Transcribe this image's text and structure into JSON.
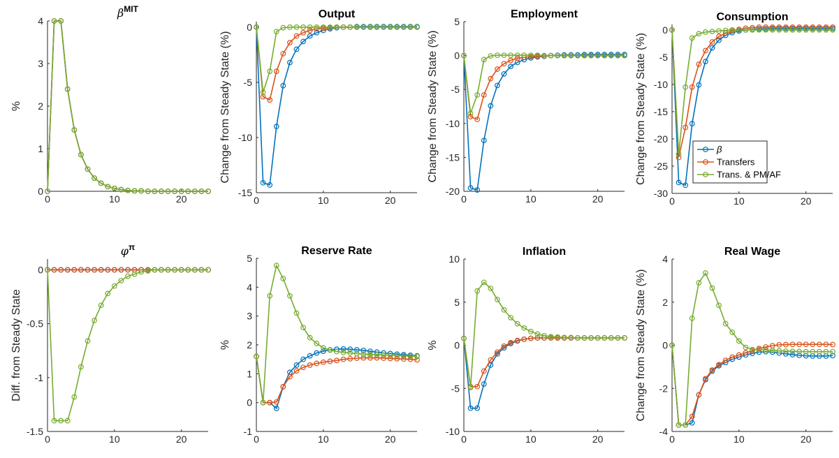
{
  "figure": {
    "legend": [
      "β",
      "Transfers",
      "Trans. & PM/AF"
    ],
    "series_colors": [
      "#0072BD",
      "#D95319",
      "#77AC30"
    ]
  },
  "chart_data": [
    {
      "type": "line",
      "title_main": "β",
      "title_sup": "MIT",
      "ylabel": "%",
      "xlim": [
        0,
        24
      ],
      "ylim": [
        0,
        4
      ],
      "xticks": [
        "0",
        "10",
        "20"
      ],
      "yticks": [
        "0",
        "1",
        "2",
        "3",
        "4"
      ],
      "x": [
        0,
        1,
        2,
        3,
        4,
        5,
        6,
        7,
        8,
        9,
        10,
        11,
        12,
        13,
        14,
        15,
        16,
        17,
        18,
        19,
        20,
        21,
        22,
        23,
        24
      ],
      "series": [
        {
          "values": [
            0,
            4,
            4,
            2.4,
            1.44,
            0.86,
            0.52,
            0.31,
            0.19,
            0.11,
            0.07,
            0.04,
            0.02,
            0.01,
            0.01,
            0,
            0,
            0,
            0,
            0,
            0,
            0,
            0,
            0,
            0
          ]
        },
        {
          "values": [
            0,
            4,
            4,
            2.4,
            1.44,
            0.86,
            0.52,
            0.31,
            0.19,
            0.11,
            0.07,
            0.04,
            0.02,
            0.01,
            0.01,
            0,
            0,
            0,
            0,
            0,
            0,
            0,
            0,
            0,
            0
          ]
        },
        {
          "values": [
            0,
            4,
            4,
            2.4,
            1.44,
            0.86,
            0.52,
            0.31,
            0.19,
            0.11,
            0.07,
            0.04,
            0.02,
            0.01,
            0.01,
            0,
            0,
            0,
            0,
            0,
            0,
            0,
            0,
            0,
            0
          ]
        }
      ]
    },
    {
      "type": "line",
      "title_main": "Output",
      "ylabel": "Change from Steady State (%)",
      "xlim": [
        0,
        24
      ],
      "ylim": [
        -15,
        0.5
      ],
      "xticks": [
        "0",
        "10",
        "20"
      ],
      "yticks": [
        "-15",
        "-10",
        "-5",
        "0"
      ],
      "x": [
        0,
        1,
        2,
        3,
        4,
        5,
        6,
        7,
        8,
        9,
        10,
        11,
        12,
        13,
        14,
        15,
        16,
        17,
        18,
        19,
        20,
        21,
        22,
        23,
        24
      ],
      "series": [
        {
          "values": [
            0,
            -14.1,
            -14.3,
            -9.0,
            -5.3,
            -3.2,
            -2.0,
            -1.3,
            -0.8,
            -0.5,
            -0.3,
            -0.15,
            -0.05,
            0,
            0,
            0.05,
            0.05,
            0.05,
            0.05,
            0.05,
            0.05,
            0.05,
            0.05,
            0.05,
            0.05
          ]
        },
        {
          "values": [
            0,
            -6.3,
            -6.6,
            -4.0,
            -2.4,
            -1.4,
            -0.8,
            -0.5,
            -0.3,
            -0.15,
            -0.1,
            -0.05,
            0,
            0,
            0,
            0,
            0,
            0,
            0,
            0,
            0,
            0,
            0,
            0,
            0
          ]
        },
        {
          "values": [
            0,
            -5.9,
            -4.0,
            -0.4,
            -0.05,
            0,
            0,
            0,
            0,
            0,
            0,
            0,
            0,
            0,
            0,
            0,
            0,
            0,
            0,
            0,
            0,
            0,
            0,
            0,
            0
          ]
        }
      ]
    },
    {
      "type": "line",
      "title_main": "Employment",
      "ylabel": "Change from Steady State (%)",
      "xlim": [
        0,
        24
      ],
      "ylim": [
        -20,
        5
      ],
      "xticks": [
        "0",
        "10",
        "20"
      ],
      "yticks": [
        "-20",
        "-15",
        "-10",
        "-5",
        "0",
        "5"
      ],
      "x": [
        0,
        1,
        2,
        3,
        4,
        5,
        6,
        7,
        8,
        9,
        10,
        11,
        12,
        13,
        14,
        15,
        16,
        17,
        18,
        19,
        20,
        21,
        22,
        23,
        24
      ],
      "series": [
        {
          "values": [
            0,
            -19.5,
            -19.8,
            -12.5,
            -7.4,
            -4.4,
            -2.7,
            -1.6,
            -1.0,
            -0.6,
            -0.35,
            -0.2,
            -0.1,
            0,
            0.05,
            0.1,
            0.1,
            0.1,
            0.15,
            0.15,
            0.15,
            0.15,
            0.15,
            0.15,
            0.15
          ]
        },
        {
          "values": [
            0,
            -9.0,
            -9.4,
            -5.8,
            -3.4,
            -2.0,
            -1.2,
            -0.7,
            -0.4,
            -0.25,
            -0.15,
            -0.1,
            -0.05,
            0,
            0,
            0,
            0,
            0,
            0,
            0,
            0,
            0,
            0,
            0,
            0
          ]
        },
        {
          "values": [
            0,
            -8.5,
            -5.8,
            -0.6,
            -0.05,
            0.05,
            0.05,
            0.05,
            0.05,
            0.05,
            0.05,
            0.05,
            0,
            0,
            0,
            0,
            0,
            0,
            0,
            0,
            0,
            0,
            0,
            0,
            0
          ]
        }
      ]
    },
    {
      "type": "line",
      "title_main": "Consumption",
      "ylabel": "Change from Steady State (%)",
      "xlim": [
        0,
        24
      ],
      "ylim": [
        -30,
        1
      ],
      "xticks": [
        "0",
        "10",
        "20"
      ],
      "yticks": [
        "-30",
        "-25",
        "-20",
        "-15",
        "-10",
        "-5",
        "0"
      ],
      "x": [
        0,
        1,
        2,
        3,
        4,
        5,
        6,
        7,
        8,
        9,
        10,
        11,
        12,
        13,
        14,
        15,
        16,
        17,
        18,
        19,
        20,
        21,
        22,
        23,
        24
      ],
      "series": [
        {
          "values": [
            0,
            -28.0,
            -28.5,
            -17.2,
            -10.1,
            -5.8,
            -3.3,
            -1.9,
            -1.0,
            -0.5,
            -0.2,
            0,
            0.1,
            0.2,
            0.2,
            0.25,
            0.25,
            0.25,
            0.25,
            0.25,
            0.25,
            0.25,
            0.25,
            0.25,
            0.25
          ]
        },
        {
          "values": [
            0,
            -23.4,
            -17.9,
            -10.5,
            -6.3,
            -3.8,
            -2.2,
            -1.2,
            -0.6,
            -0.2,
            0.1,
            0.3,
            0.4,
            0.5,
            0.5,
            0.5,
            0.5,
            0.5,
            0.5,
            0.5,
            0.5,
            0.5,
            0.5,
            0.5,
            0.5
          ]
        },
        {
          "values": [
            0,
            -22.8,
            -10.5,
            -1.5,
            -0.7,
            -0.4,
            -0.3,
            -0.2,
            -0.1,
            0,
            0,
            0,
            0,
            0,
            0,
            0,
            0,
            0,
            0,
            0,
            0,
            0,
            0,
            0,
            0
          ]
        }
      ]
    },
    {
      "type": "line",
      "title_main": "φ",
      "title_sup": "π",
      "ylabel": "Diff. from Steady State",
      "xlim": [
        0,
        24
      ],
      "ylim": [
        -1.5,
        0.1
      ],
      "xticks": [
        "0",
        "10",
        "20"
      ],
      "yticks": [
        "-1.5",
        "-1",
        "-0.5",
        "0"
      ],
      "x": [
        0,
        1,
        2,
        3,
        4,
        5,
        6,
        7,
        8,
        9,
        10,
        11,
        12,
        13,
        14,
        15,
        16,
        17,
        18,
        19,
        20,
        21,
        22,
        23,
        24
      ],
      "series": [
        {
          "values": [
            0,
            0,
            0,
            0,
            0,
            0,
            0,
            0,
            0,
            0,
            0,
            0,
            0,
            0,
            0,
            0,
            0,
            0,
            0,
            0,
            0,
            0,
            0,
            0,
            0
          ]
        },
        {
          "values": [
            0,
            0,
            0,
            0,
            0,
            0,
            0,
            0,
            0,
            0,
            0,
            0,
            0,
            0,
            0,
            0,
            0,
            0,
            0,
            0,
            0,
            0,
            0,
            0,
            0
          ]
        },
        {
          "values": [
            0,
            -1.4,
            -1.4,
            -1.4,
            -1.18,
            -0.9,
            -0.66,
            -0.47,
            -0.33,
            -0.22,
            -0.15,
            -0.1,
            -0.06,
            -0.04,
            -0.02,
            -0.01,
            0,
            0,
            0,
            0,
            0,
            0,
            0,
            0,
            0
          ]
        }
      ]
    },
    {
      "type": "line",
      "title_main": "Reserve Rate",
      "ylabel": "%",
      "xlim": [
        0,
        24
      ],
      "ylim": [
        -1,
        5
      ],
      "xticks": [
        "0",
        "10",
        "20"
      ],
      "yticks": [
        "-1",
        "0",
        "1",
        "2",
        "3",
        "4",
        "5"
      ],
      "x": [
        0,
        1,
        2,
        3,
        4,
        5,
        6,
        7,
        8,
        9,
        10,
        11,
        12,
        13,
        14,
        15,
        16,
        17,
        18,
        19,
        20,
        21,
        22,
        23,
        24
      ],
      "series": [
        {
          "values": [
            1.6,
            0,
            0,
            -0.2,
            0.55,
            1.05,
            1.3,
            1.5,
            1.62,
            1.72,
            1.78,
            1.83,
            1.85,
            1.86,
            1.85,
            1.83,
            1.81,
            1.78,
            1.75,
            1.72,
            1.7,
            1.68,
            1.66,
            1.64,
            1.62
          ]
        },
        {
          "values": [
            1.6,
            0,
            0,
            0.02,
            0.55,
            0.9,
            1.1,
            1.22,
            1.3,
            1.36,
            1.4,
            1.43,
            1.46,
            1.5,
            1.52,
            1.54,
            1.55,
            1.55,
            1.55,
            1.54,
            1.53,
            1.52,
            1.51,
            1.5,
            1.48
          ]
        },
        {
          "values": [
            1.6,
            0,
            3.7,
            4.75,
            4.3,
            3.7,
            3.1,
            2.6,
            2.25,
            2.05,
            1.9,
            1.82,
            1.77,
            1.74,
            1.72,
            1.7,
            1.68,
            1.67,
            1.66,
            1.65,
            1.64,
            1.63,
            1.62,
            1.61,
            1.6
          ]
        }
      ]
    },
    {
      "type": "line",
      "title_main": "Inflation",
      "ylabel": "%",
      "xlim": [
        0,
        24
      ],
      "ylim": [
        -10,
        10
      ],
      "xticks": [
        "0",
        "10",
        "20"
      ],
      "yticks": [
        "-10",
        "-5",
        "0",
        "5",
        "10"
      ],
      "x": [
        0,
        1,
        2,
        3,
        4,
        5,
        6,
        7,
        8,
        9,
        10,
        11,
        12,
        13,
        14,
        15,
        16,
        17,
        18,
        19,
        20,
        21,
        22,
        23,
        24
      ],
      "series": [
        {
          "values": [
            0.8,
            -7.3,
            -7.3,
            -4.5,
            -2.3,
            -1.0,
            -0.3,
            0.2,
            0.5,
            0.7,
            0.8,
            0.85,
            0.85,
            0.85,
            0.85,
            0.85,
            0.85,
            0.85,
            0.85,
            0.85,
            0.85,
            0.85,
            0.85,
            0.85,
            0.85
          ]
        },
        {
          "values": [
            0.8,
            -4.8,
            -4.8,
            -3.0,
            -1.7,
            -0.8,
            -0.1,
            0.3,
            0.55,
            0.7,
            0.8,
            0.85,
            0.85,
            0.85,
            0.85,
            0.85,
            0.85,
            0.85,
            0.85,
            0.85,
            0.85,
            0.85,
            0.85,
            0.85,
            0.85
          ]
        },
        {
          "values": [
            0.8,
            -4.9,
            6.3,
            7.3,
            6.6,
            5.3,
            4.1,
            3.2,
            2.5,
            2.0,
            1.6,
            1.3,
            1.1,
            1.0,
            0.95,
            0.9,
            0.9,
            0.85,
            0.85,
            0.85,
            0.85,
            0.85,
            0.85,
            0.85,
            0.85
          ]
        }
      ]
    },
    {
      "type": "line",
      "title_main": "Real Wage",
      "ylabel": "Change from Steady State (%)",
      "xlim": [
        0,
        24
      ],
      "ylim": [
        -4,
        4
      ],
      "xticks": [
        "0",
        "10",
        "20"
      ],
      "yticks": [
        "-4",
        "-2",
        "0",
        "2",
        "4"
      ],
      "x": [
        0,
        1,
        2,
        3,
        4,
        5,
        6,
        7,
        8,
        9,
        10,
        11,
        12,
        13,
        14,
        15,
        16,
        17,
        18,
        19,
        20,
        21,
        22,
        23,
        24
      ],
      "series": [
        {
          "values": [
            0,
            -3.7,
            -3.7,
            -3.6,
            -2.3,
            -1.6,
            -1.2,
            -0.95,
            -0.8,
            -0.65,
            -0.55,
            -0.45,
            -0.38,
            -0.32,
            -0.3,
            -0.32,
            -0.36,
            -0.4,
            -0.44,
            -0.47,
            -0.49,
            -0.5,
            -0.5,
            -0.5,
            -0.48
          ]
        },
        {
          "values": [
            0,
            -3.7,
            -3.7,
            -3.3,
            -2.3,
            -1.55,
            -1.15,
            -0.9,
            -0.7,
            -0.55,
            -0.45,
            -0.35,
            -0.25,
            -0.15,
            -0.08,
            -0.02,
            0.02,
            0.03,
            0.04,
            0.04,
            0.04,
            0.04,
            0.04,
            0.04,
            0.03
          ]
        },
        {
          "values": [
            0,
            -3.7,
            -3.7,
            1.25,
            2.9,
            3.35,
            2.65,
            1.85,
            1.0,
            0.6,
            0.2,
            -0.1,
            -0.2,
            -0.2,
            -0.22,
            -0.24,
            -0.26,
            -0.27,
            -0.28,
            -0.29,
            -0.3,
            -0.3,
            -0.3,
            -0.3,
            -0.3
          ]
        }
      ]
    }
  ]
}
